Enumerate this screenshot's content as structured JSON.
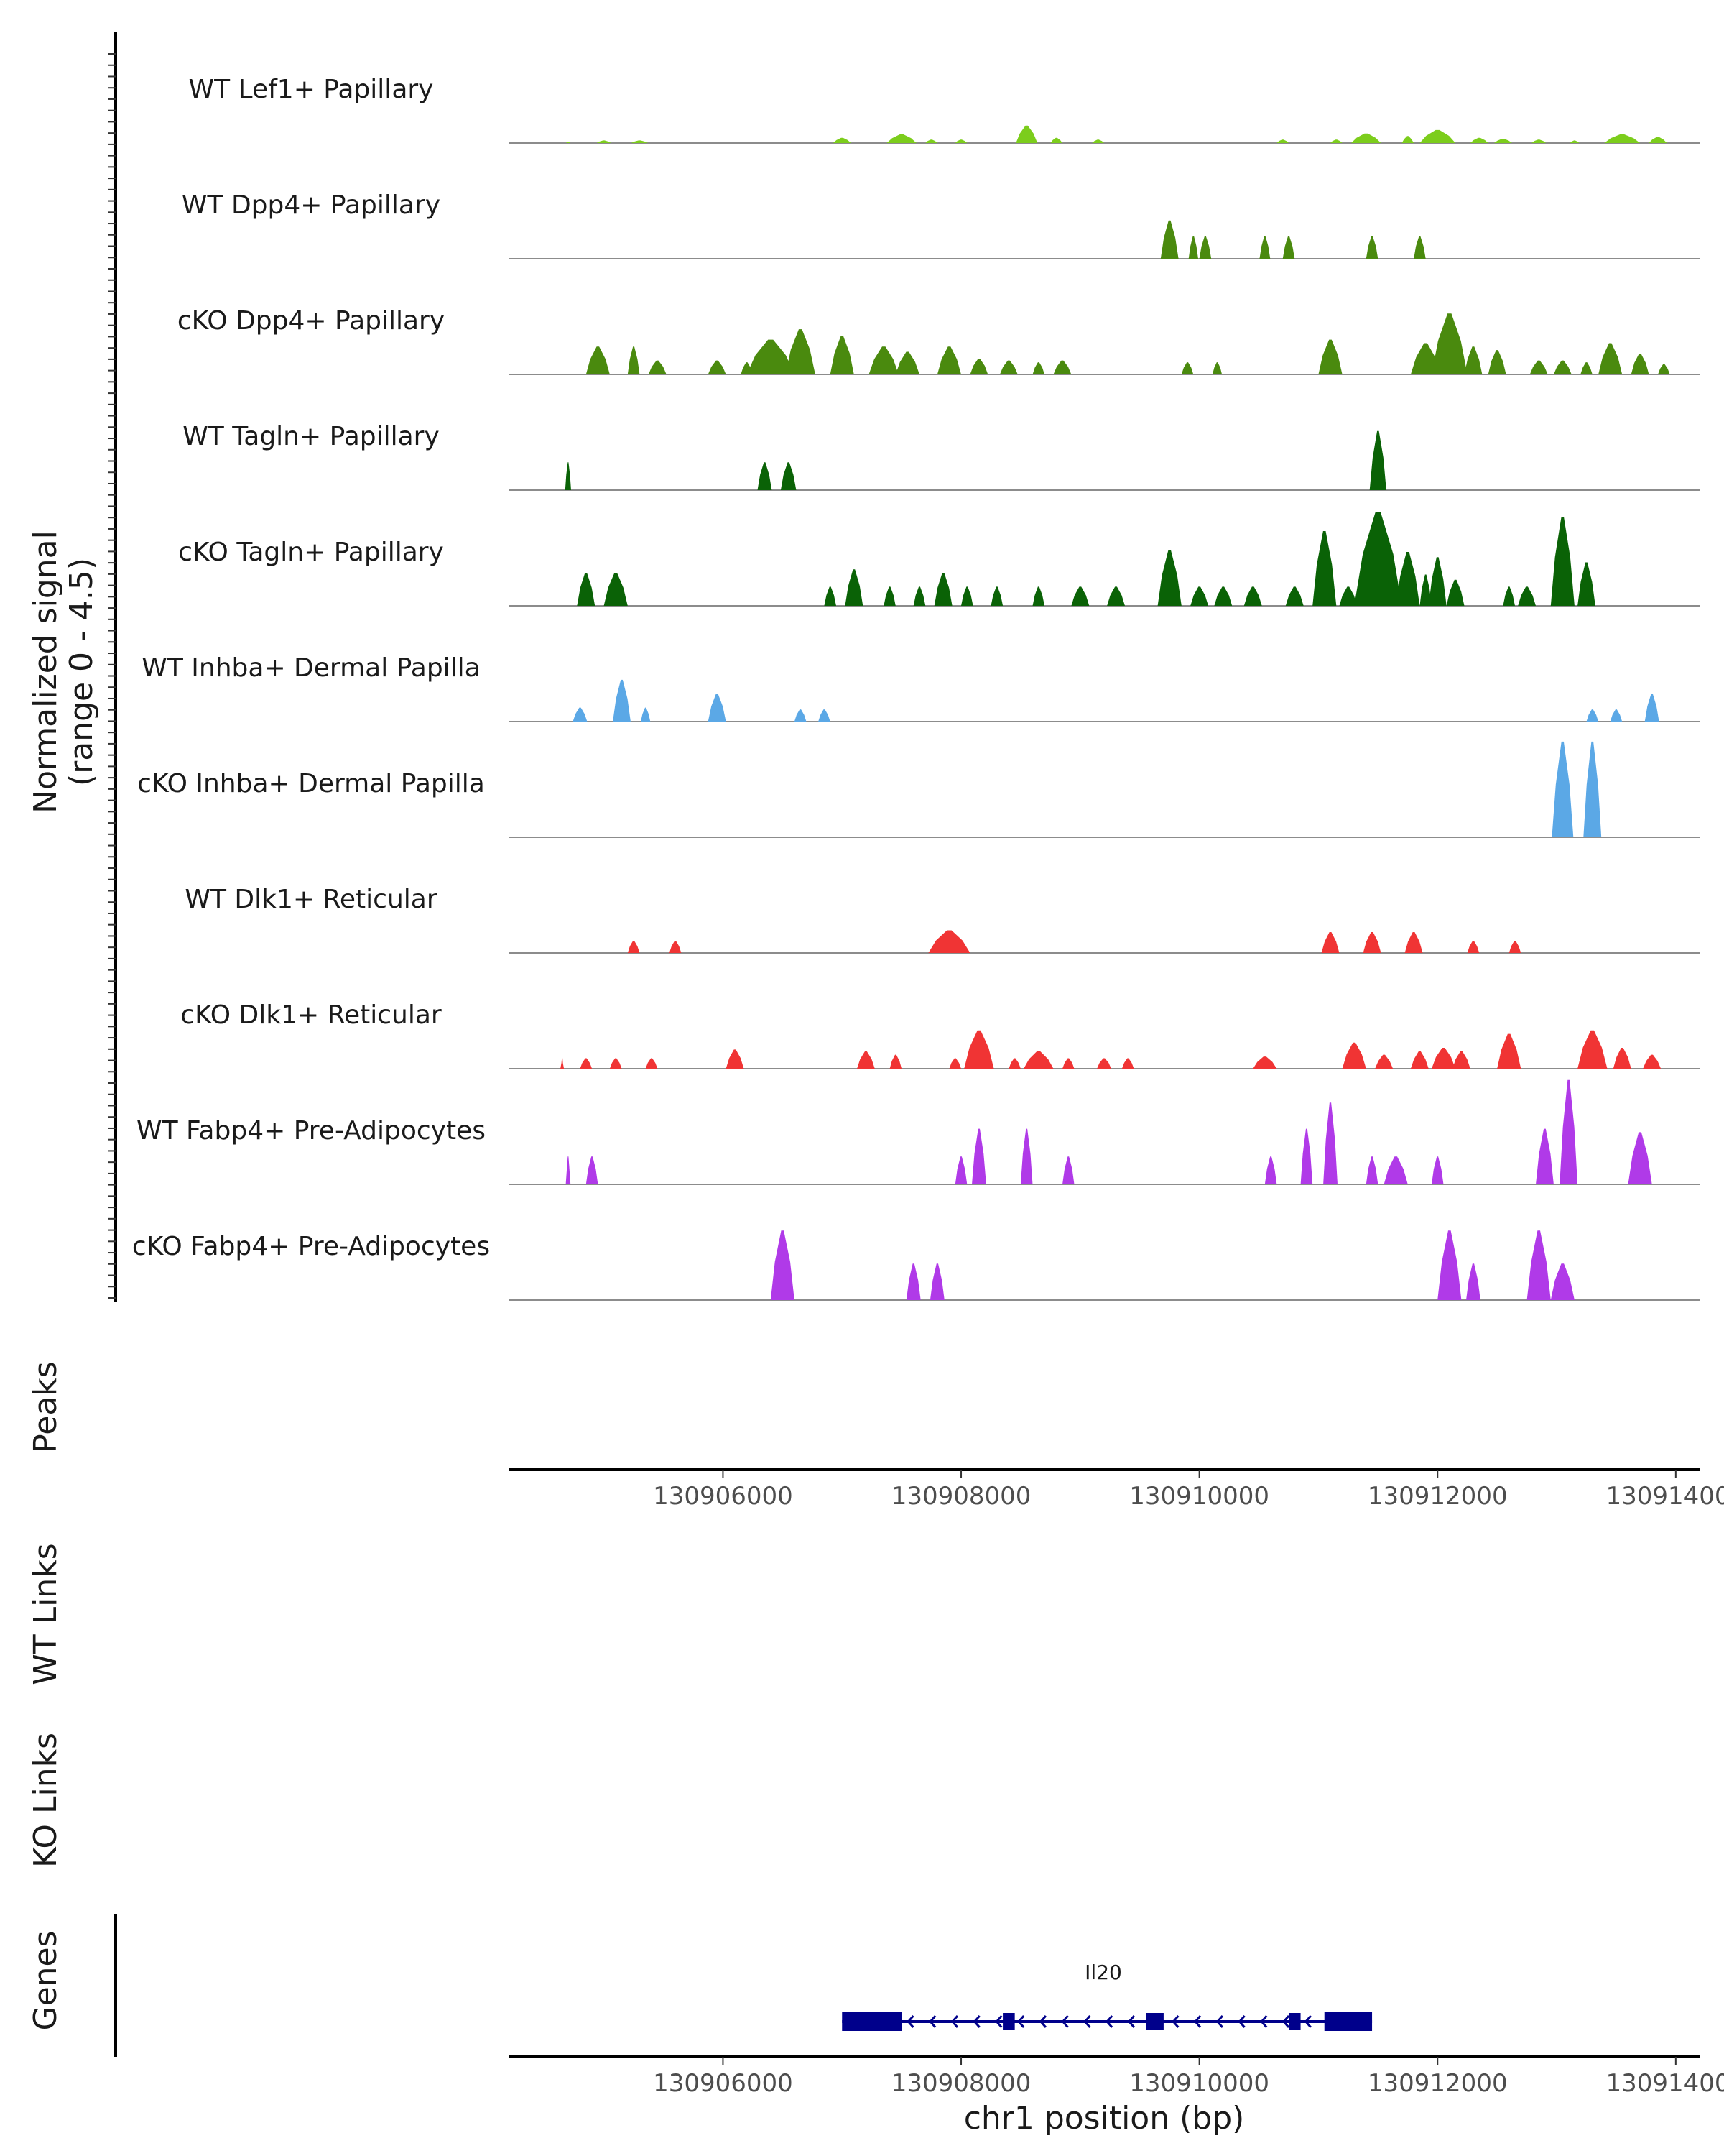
{
  "chart_data": {
    "type": "area",
    "genome_region": {
      "chromosome": "chr1",
      "start": 130904200,
      "end": 130914200
    },
    "y_axis_title": "Normalized signal",
    "y_axis_subtitle": "(range 0 - 4.5)",
    "ylim": [
      0,
      4.5
    ],
    "x_axis_title": "chr1 position (bp)",
    "x_ticks": [
      130906000,
      130908000,
      130910000,
      130912000,
      130914000
    ],
    "x_tick_labels": [
      "130906000",
      "130908000",
      "130910000",
      "130912000",
      "130914000"
    ],
    "panel_labels": {
      "peaks": "Peaks",
      "wt_links": "WT Links",
      "ko_links": "KO Links",
      "genes": "Genes"
    },
    "series": [
      {
        "name": "WT Lef1+ Papillary",
        "color": "#7ccd1c",
        "peaks": [
          [
            130904700,
            40,
            0.06
          ],
          [
            130905000,
            120,
            0.15
          ],
          [
            130905300,
            140,
            0.15
          ],
          [
            130907000,
            150,
            0.3
          ],
          [
            130907500,
            250,
            0.5
          ],
          [
            130907750,
            100,
            0.2
          ],
          [
            130908000,
            100,
            0.2
          ],
          [
            130908550,
            180,
            1.0
          ],
          [
            130908800,
            100,
            0.3
          ],
          [
            130909150,
            100,
            0.2
          ],
          [
            130910700,
            100,
            0.2
          ],
          [
            130911150,
            100,
            0.2
          ],
          [
            130911400,
            250,
            0.55
          ],
          [
            130911750,
            100,
            0.4
          ],
          [
            130912000,
            300,
            0.75
          ],
          [
            130912350,
            150,
            0.3
          ],
          [
            130912550,
            150,
            0.25
          ],
          [
            130912850,
            120,
            0.2
          ],
          [
            130913150,
            80,
            0.15
          ],
          [
            130913550,
            300,
            0.5
          ],
          [
            130913850,
            150,
            0.35
          ]
        ]
      },
      {
        "name": "WT Dpp4+ Papillary",
        "color": "#4a8a0e",
        "peaks": [
          [
            130909750,
            150,
            2.2
          ],
          [
            130909950,
            80,
            1.3
          ],
          [
            130910050,
            100,
            1.3
          ],
          [
            130910550,
            90,
            1.3
          ],
          [
            130910750,
            100,
            1.3
          ],
          [
            130911450,
            100,
            1.3
          ],
          [
            130911850,
            100,
            1.3
          ]
        ]
      },
      {
        "name": "cKO Dpp4+ Papillary",
        "color": "#4a8a0e",
        "peaks": [
          [
            130904950,
            200,
            1.6
          ],
          [
            130905250,
            100,
            1.6
          ],
          [
            130905450,
            150,
            0.8
          ],
          [
            130905950,
            150,
            0.8
          ],
          [
            130906200,
            100,
            0.7
          ],
          [
            130906400,
            400,
            2.0
          ],
          [
            130906650,
            250,
            2.6
          ],
          [
            130907000,
            200,
            2.2
          ],
          [
            130907350,
            250,
            1.6
          ],
          [
            130907550,
            200,
            1.3
          ],
          [
            130907900,
            200,
            1.6
          ],
          [
            130908150,
            150,
            0.9
          ],
          [
            130908400,
            150,
            0.8
          ],
          [
            130908650,
            100,
            0.7
          ],
          [
            130908850,
            150,
            0.8
          ],
          [
            130909900,
            100,
            0.7
          ],
          [
            130910150,
            80,
            0.7
          ],
          [
            130911100,
            200,
            2.0
          ],
          [
            130911900,
            250,
            1.8
          ],
          [
            130912100,
            300,
            3.5
          ],
          [
            130912300,
            150,
            1.6
          ],
          [
            130912500,
            150,
            1.4
          ],
          [
            130912850,
            150,
            0.8
          ],
          [
            130913050,
            150,
            0.8
          ],
          [
            130913250,
            100,
            0.7
          ],
          [
            130913450,
            200,
            1.8
          ],
          [
            130913700,
            150,
            1.2
          ],
          [
            130913900,
            100,
            0.6
          ]
        ]
      },
      {
        "name": "WT Tagln+ Papillary",
        "color": "#0a6206",
        "peaks": [
          [
            130904700,
            50,
            1.6
          ],
          [
            130906350,
            120,
            1.6
          ],
          [
            130906550,
            130,
            1.6
          ],
          [
            130911500,
            140,
            3.4
          ]
        ]
      },
      {
        "name": "cKO Tagln+ Papillary",
        "color": "#0a6206",
        "peaks": [
          [
            130904850,
            150,
            1.9
          ],
          [
            130905100,
            200,
            1.9
          ],
          [
            130906900,
            100,
            1.1
          ],
          [
            130907100,
            150,
            2.1
          ],
          [
            130907400,
            100,
            1.1
          ],
          [
            130907650,
            100,
            1.1
          ],
          [
            130907850,
            150,
            1.9
          ],
          [
            130908050,
            100,
            1.1
          ],
          [
            130908300,
            100,
            1.1
          ],
          [
            130908650,
            100,
            1.1
          ],
          [
            130909000,
            150,
            1.1
          ],
          [
            130909300,
            150,
            1.1
          ],
          [
            130909750,
            200,
            3.2
          ],
          [
            130910000,
            150,
            1.1
          ],
          [
            130910200,
            150,
            1.1
          ],
          [
            130910450,
            150,
            1.1
          ],
          [
            130910800,
            150,
            1.1
          ],
          [
            130911050,
            200,
            4.3
          ],
          [
            130911250,
            150,
            1.1
          ],
          [
            130911500,
            400,
            5.4
          ],
          [
            130911750,
            200,
            3.1
          ],
          [
            130911900,
            100,
            1.8
          ],
          [
            130912000,
            150,
            2.8
          ],
          [
            130912150,
            150,
            1.5
          ],
          [
            130912600,
            100,
            1.1
          ],
          [
            130912750,
            150,
            1.1
          ],
          [
            130913050,
            200,
            5.1
          ],
          [
            130913250,
            150,
            2.5
          ]
        ]
      },
      {
        "name": "WT Inhba+ Dermal Papilla",
        "color": "#5ba8e6",
        "peaks": [
          [
            130904800,
            120,
            0.8
          ],
          [
            130905150,
            150,
            2.4
          ],
          [
            130905350,
            80,
            0.8
          ],
          [
            130905950,
            150,
            1.6
          ],
          [
            130906650,
            100,
            0.7
          ],
          [
            130906850,
            100,
            0.7
          ],
          [
            130913300,
            100,
            0.7
          ],
          [
            130913500,
            100,
            0.7
          ],
          [
            130913800,
            120,
            1.6
          ]
        ]
      },
      {
        "name": "cKO Inhba+ Dermal Papilla",
        "color": "#5ba8e6",
        "peaks": [
          [
            130913050,
            180,
            5.5
          ],
          [
            130913300,
            150,
            5.5
          ]
        ]
      },
      {
        "name": "WT Dlk1+ Reticular",
        "color": "#f03434",
        "peaks": [
          [
            130905250,
            100,
            0.7
          ],
          [
            130905600,
            100,
            0.7
          ],
          [
            130907900,
            350,
            1.3
          ],
          [
            130911100,
            150,
            1.2
          ],
          [
            130911450,
            150,
            1.2
          ],
          [
            130911800,
            150,
            1.2
          ],
          [
            130912300,
            100,
            0.7
          ],
          [
            130912650,
            100,
            0.7
          ]
        ]
      },
      {
        "name": "cKO Dlk1+ Reticular",
        "color": "#f03434",
        "peaks": [
          [
            130904650,
            30,
            0.6
          ],
          [
            130904850,
            100,
            0.6
          ],
          [
            130905100,
            100,
            0.6
          ],
          [
            130905400,
            100,
            0.6
          ],
          [
            130906100,
            150,
            1.1
          ],
          [
            130907200,
            150,
            1.0
          ],
          [
            130907450,
            100,
            0.8
          ],
          [
            130907950,
            100,
            0.6
          ],
          [
            130908150,
            250,
            2.2
          ],
          [
            130908450,
            100,
            0.6
          ],
          [
            130908650,
            250,
            1.0
          ],
          [
            130908900,
            100,
            0.6
          ],
          [
            130909200,
            120,
            0.6
          ],
          [
            130909400,
            100,
            0.6
          ],
          [
            130910550,
            200,
            0.7
          ],
          [
            130911300,
            200,
            1.5
          ],
          [
            130911550,
            150,
            0.8
          ],
          [
            130911850,
            150,
            1.0
          ],
          [
            130912050,
            200,
            1.2
          ],
          [
            130912200,
            150,
            1.0
          ],
          [
            130912600,
            200,
            2.0
          ],
          [
            130913300,
            250,
            2.2
          ],
          [
            130913550,
            150,
            1.2
          ],
          [
            130913800,
            150,
            0.8
          ]
        ]
      },
      {
        "name": "WT Fabp4+ Pre-Adipocytes",
        "color": "#b03ae8",
        "peaks": [
          [
            130904700,
            40,
            1.6
          ],
          [
            130904900,
            100,
            1.6
          ],
          [
            130908000,
            100,
            1.6
          ],
          [
            130908150,
            120,
            3.2
          ],
          [
            130908550,
            100,
            3.2
          ],
          [
            130908900,
            100,
            1.6
          ],
          [
            130910600,
            100,
            1.6
          ],
          [
            130910900,
            100,
            3.2
          ],
          [
            130911100,
            120,
            4.7
          ],
          [
            130911450,
            100,
            1.6
          ],
          [
            130911650,
            200,
            1.6
          ],
          [
            130912000,
            100,
            1.6
          ],
          [
            130912900,
            150,
            3.2
          ],
          [
            130913100,
            150,
            6.0
          ],
          [
            130913700,
            200,
            3.0
          ]
        ]
      },
      {
        "name": "cKO Fabp4+ Pre-Adipocytes",
        "color": "#b03ae8",
        "peaks": [
          [
            130906500,
            200,
            4.0
          ],
          [
            130907600,
            120,
            2.1
          ],
          [
            130907800,
            120,
            2.1
          ],
          [
            130912100,
            200,
            4.0
          ],
          [
            130912300,
            120,
            2.1
          ],
          [
            130912850,
            200,
            4.0
          ],
          [
            130913050,
            200,
            2.1
          ]
        ]
      }
    ],
    "gene": {
      "name": "Il20",
      "strand": "-",
      "start": 130907000,
      "end": 130911450,
      "color": "#00008b",
      "exons": [
        [
          130907000,
          130907500
        ],
        [
          130908350,
          130908450
        ],
        [
          130909550,
          130909700
        ],
        [
          130910750,
          130910850
        ],
        [
          130911050,
          130911450
        ]
      ]
    }
  }
}
